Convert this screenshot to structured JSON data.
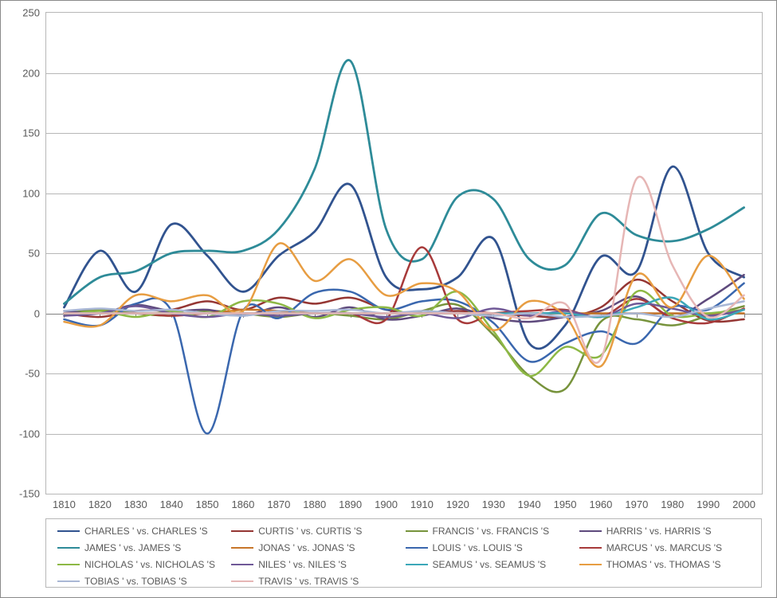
{
  "chart": {
    "type": "line",
    "plot": {
      "x_start": 1810,
      "x_end": 2000,
      "x_tick_step": 10,
      "ylim": [
        -150,
        250
      ],
      "ytick_step": 50,
      "background_color": "#ffffff",
      "grid_color": "#b7b7b7",
      "axis_color": "#808080",
      "label_color": "#595959",
      "label_fontsize": 13,
      "line_width": 2.5,
      "legend_fontsize": 12
    },
    "x_labels": [
      "1810",
      "1820",
      "1830",
      "1840",
      "1850",
      "1860",
      "1870",
      "1880",
      "1890",
      "1900",
      "1910",
      "1920",
      "1930",
      "1940",
      "1950",
      "1960",
      "1970",
      "1980",
      "1990",
      "2000"
    ],
    "series": [
      {
        "label": " CHARLES ' vs.  CHARLES 'S",
        "color": "#31538f",
        "width": 2.8,
        "values": [
          5,
          52,
          18,
          74,
          48,
          18,
          48,
          68,
          107,
          30,
          20,
          30,
          62,
          -25,
          -10,
          47,
          35,
          122,
          50,
          30
        ]
      },
      {
        "label": " CURTIS ' vs.  CURTIS 'S",
        "color": "#953633",
        "width": 2.5,
        "values": [
          0,
          -3,
          2,
          3,
          10,
          3,
          13,
          8,
          13,
          3,
          0,
          2,
          0,
          -2,
          -3,
          5,
          28,
          10,
          -6,
          -5
        ]
      },
      {
        "label": " FRANCIS ' vs.  FRANCIS 'S",
        "color": "#77933c",
        "width": 2.5,
        "values": [
          0,
          3,
          0,
          -2,
          2,
          0,
          -3,
          0,
          -2,
          -5,
          2,
          7,
          -18,
          -52,
          -63,
          -7,
          -5,
          -10,
          -2,
          6
        ]
      },
      {
        "label": " HARRIS ' vs.  HARRIS 'S",
        "color": "#5e4a7d",
        "width": 2.5,
        "values": [
          2,
          0,
          7,
          2,
          3,
          -2,
          5,
          -3,
          5,
          -5,
          -2,
          4,
          -4,
          -7,
          -3,
          2,
          14,
          -3,
          12,
          32
        ]
      },
      {
        "label": " JAMES ' vs.  JAMES 'S",
        "color": "#2e8b98",
        "width": 2.8,
        "values": [
          8,
          30,
          35,
          50,
          52,
          52,
          70,
          120,
          210,
          70,
          45,
          97,
          95,
          45,
          40,
          83,
          65,
          60,
          70,
          88
        ]
      },
      {
        "label": " JONAS ' vs.  JONAS 'S",
        "color": "#c7762a",
        "width": 2.5,
        "values": [
          0,
          0,
          0,
          0,
          0,
          3,
          2,
          0,
          0,
          0,
          0,
          0,
          0,
          0,
          0,
          0,
          0,
          0,
          0,
          0
        ]
      },
      {
        "label": " LOUIS ' vs.  LOUIS 'S",
        "color": "#3a67ae",
        "width": 2.5,
        "values": [
          -5,
          -10,
          8,
          2,
          -100,
          2,
          -4,
          17,
          18,
          3,
          10,
          10,
          -8,
          -40,
          -25,
          -15,
          -25,
          5,
          3,
          25
        ]
      },
      {
        "label": " MARCUS ' vs.  MARCUS 'S",
        "color": "#a73a3a",
        "width": 2.5,
        "values": [
          0,
          0,
          0,
          -2,
          0,
          0,
          0,
          0,
          0,
          -5,
          55,
          -5,
          0,
          2,
          3,
          -3,
          12,
          -4,
          -8,
          4
        ]
      },
      {
        "label": " NICHOLAS ' vs.  NICHOLAS 'S",
        "color": "#8db845",
        "width": 2.5,
        "values": [
          -2,
          2,
          -3,
          2,
          -3,
          10,
          8,
          -4,
          3,
          5,
          -2,
          18,
          -15,
          -52,
          -28,
          -35,
          18,
          -2,
          0,
          3
        ]
      },
      {
        "label": " NILES ' vs.  NILES 'S",
        "color": "#6f5897",
        "width": 2.5,
        "values": [
          -2,
          0,
          6,
          0,
          -3,
          0,
          -2,
          0,
          0,
          -3,
          0,
          -4,
          4,
          -2,
          2,
          -3,
          8,
          4,
          -2,
          3
        ]
      },
      {
        "label": " SEAMUS ' vs.  SEAMUS 'S",
        "color": "#3ba7b8",
        "width": 2.5,
        "values": [
          0,
          0,
          0,
          0,
          0,
          0,
          0,
          0,
          0,
          0,
          0,
          0,
          0,
          0,
          0,
          -3,
          5,
          13,
          -5,
          3
        ]
      },
      {
        "label": " THOMAS ' vs.  THOMAS 'S",
        "color": "#e79d42",
        "width": 2.5,
        "values": [
          -7,
          -10,
          15,
          10,
          15,
          2,
          58,
          27,
          45,
          15,
          25,
          18,
          -14,
          10,
          -2,
          -44,
          32,
          5,
          48,
          12
        ]
      },
      {
        "label": " TOBIAS ' vs.  TOBIAS 'S",
        "color": "#a9b7d5",
        "width": 2.5,
        "values": [
          2,
          4,
          2,
          3,
          0,
          -2,
          2,
          2,
          3,
          0,
          2,
          0,
          -2,
          0,
          -3,
          -2,
          0,
          -3,
          4,
          10
        ]
      },
      {
        "label": " TRAVIS ' vs.  TRAVIS 'S",
        "color": "#e6b6b5",
        "width": 2.5,
        "values": [
          0,
          0,
          0,
          0,
          0,
          0,
          0,
          0,
          0,
          0,
          0,
          0,
          0,
          -4,
          8,
          -38,
          112,
          40,
          -3,
          15
        ]
      }
    ]
  }
}
